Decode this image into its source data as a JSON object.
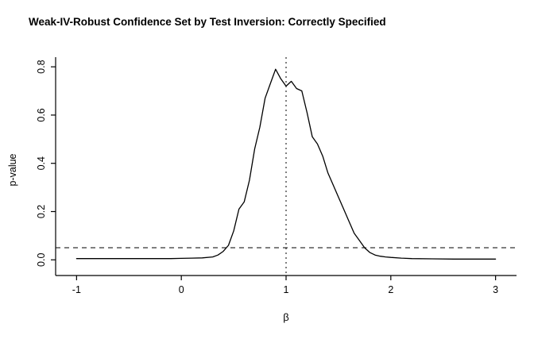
{
  "title": "Weak-IV-Robust Confidence Set by Test Inversion: Correctly Specified",
  "chart_data": {
    "type": "line",
    "title": "Weak-IV-Robust Confidence Set by Test Inversion: Correctly Specified",
    "xlabel": "β",
    "ylabel": "p-value",
    "xlim": [
      -1.2,
      3.2
    ],
    "ylim": [
      -0.065,
      0.84
    ],
    "grid": false,
    "legend": "none",
    "x_ticks": [
      -1,
      0,
      1,
      2,
      3
    ],
    "x_tick_labels": [
      "-1",
      "0",
      "1",
      "2",
      "3"
    ],
    "y_ticks": [
      0,
      0.2,
      0.4,
      0.6,
      0.8
    ],
    "y_tick_labels": [
      "0.0",
      "0.2",
      "0.4",
      "0.6",
      "0.8"
    ],
    "line_color": "#000000",
    "reference_lines": [
      {
        "orientation": "horizontal",
        "value": 0.05,
        "style": "dashed",
        "meaning": "significance-level-alpha-0.05"
      },
      {
        "orientation": "vertical",
        "value": 1,
        "style": "dotted",
        "meaning": "hypothesized-true-beta"
      }
    ],
    "series": [
      {
        "name": "p-value",
        "x": [
          -1.0,
          -0.9,
          -0.8,
          -0.7,
          -0.6,
          -0.5,
          -0.4,
          -0.3,
          -0.2,
          -0.1,
          0.0,
          0.1,
          0.2,
          0.3,
          0.35,
          0.4,
          0.45,
          0.5,
          0.55,
          0.6,
          0.65,
          0.7,
          0.75,
          0.8,
          0.85,
          0.9,
          0.95,
          1.0,
          1.05,
          1.1,
          1.15,
          1.2,
          1.25,
          1.3,
          1.35,
          1.4,
          1.45,
          1.5,
          1.55,
          1.6,
          1.65,
          1.7,
          1.75,
          1.8,
          1.85,
          1.9,
          1.95,
          2.0,
          2.1,
          2.2,
          2.4,
          2.6,
          2.8,
          3.0
        ],
        "y": [
          0.005,
          0.005,
          0.005,
          0.005,
          0.005,
          0.005,
          0.005,
          0.005,
          0.005,
          0.005,
          0.006,
          0.007,
          0.008,
          0.012,
          0.02,
          0.035,
          0.06,
          0.12,
          0.21,
          0.24,
          0.33,
          0.46,
          0.55,
          0.67,
          0.73,
          0.79,
          0.75,
          0.72,
          0.74,
          0.71,
          0.7,
          0.61,
          0.51,
          0.48,
          0.43,
          0.36,
          0.31,
          0.26,
          0.21,
          0.16,
          0.11,
          0.08,
          0.05,
          0.03,
          0.02,
          0.015,
          0.012,
          0.01,
          0.007,
          0.005,
          0.004,
          0.003,
          0.003,
          0.003
        ]
      }
    ]
  }
}
